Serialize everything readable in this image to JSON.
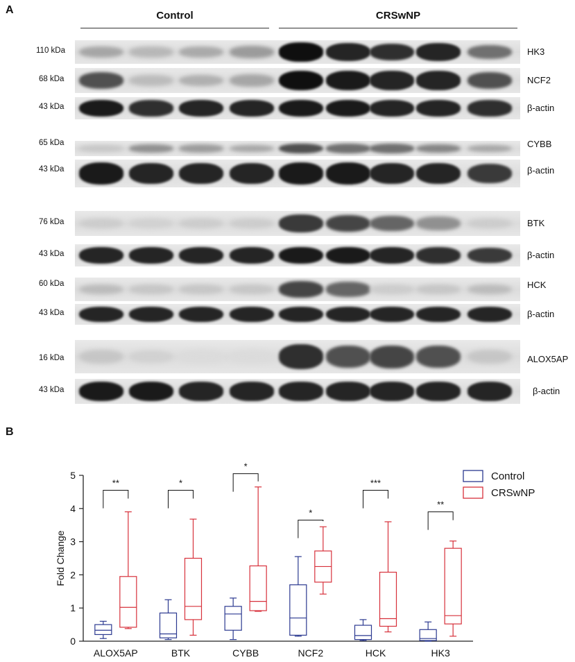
{
  "panel_a": {
    "letter": "A",
    "groups": {
      "control": "Control",
      "crswnp": "CRSwNP"
    },
    "rows": [
      {
        "mw": "110 kDa",
        "protein": "HK3",
        "intensities": [
          0.3,
          0.22,
          0.28,
          0.35,
          1.0,
          0.9,
          0.85,
          0.9,
          0.55
        ]
      },
      {
        "mw": "68 kDa",
        "protein": "NCF2",
        "intensities": [
          0.7,
          0.2,
          0.25,
          0.3,
          1.0,
          0.95,
          0.9,
          0.9,
          0.7
        ]
      },
      {
        "mw": "43 kDa",
        "protein": "β-actin",
        "intensities": [
          0.95,
          0.85,
          0.9,
          0.9,
          0.95,
          0.95,
          0.9,
          0.9,
          0.85
        ]
      },
      {
        "mw": "65 kDa",
        "protein": "CYBB",
        "intensities": [
          0.15,
          0.4,
          0.35,
          0.3,
          0.7,
          0.55,
          0.55,
          0.45,
          0.3
        ]
      },
      {
        "mw": "43 kDa",
        "protein": "β-actin",
        "intensities": [
          0.95,
          0.9,
          0.9,
          0.9,
          0.95,
          0.95,
          0.9,
          0.9,
          0.8
        ]
      },
      {
        "mw": "76 kDa",
        "protein": "BTK",
        "intensities": [
          0.12,
          0.1,
          0.12,
          0.12,
          0.8,
          0.75,
          0.6,
          0.4,
          0.12
        ]
      },
      {
        "mw": "43 kDa",
        "protein": "β-actin",
        "intensities": [
          0.9,
          0.9,
          0.9,
          0.9,
          0.95,
          0.95,
          0.9,
          0.85,
          0.8
        ]
      },
      {
        "mw": "60 kDa",
        "protein": "HCK",
        "intensities": [
          0.2,
          0.15,
          0.15,
          0.15,
          0.75,
          0.6,
          0.12,
          0.15,
          0.2
        ]
      },
      {
        "mw": "43 kDa",
        "protein": "β-actin",
        "intensities": [
          0.9,
          0.9,
          0.9,
          0.9,
          0.9,
          0.9,
          0.9,
          0.9,
          0.9
        ]
      },
      {
        "mw": "16 kDa",
        "protein": "ALOX5AP",
        "intensities": [
          0.15,
          0.1,
          0.05,
          0.05,
          0.85,
          0.7,
          0.75,
          0.7,
          0.15
        ]
      },
      {
        "mw": "43 kDa",
        "protein": "β-actin",
        "intensities": [
          0.95,
          0.95,
          0.9,
          0.9,
          0.9,
          0.9,
          0.9,
          0.9,
          0.9
        ]
      }
    ]
  },
  "panel_b": {
    "letter": "B"
  },
  "chart_data": {
    "type": "boxplot",
    "categories": [
      "ALOX5AP",
      "BTK",
      "CYBB",
      "NCF2",
      "HCK",
      "HK3"
    ],
    "ylabel": "Fold Change",
    "xlabel": "",
    "ylim": [
      0,
      5
    ],
    "yticks": [
      0,
      1,
      2,
      3,
      4,
      5
    ],
    "legend_position": "top-right",
    "series": [
      {
        "name": "Control",
        "color": "#2b3990",
        "boxes": [
          {
            "min": 0.08,
            "q1": 0.2,
            "median": 0.33,
            "q3": 0.5,
            "max": 0.6
          },
          {
            "min": 0.05,
            "q1": 0.1,
            "median": 0.22,
            "q3": 0.85,
            "max": 1.25
          },
          {
            "min": 0.05,
            "q1": 0.33,
            "median": 0.82,
            "q3": 1.05,
            "max": 1.3
          },
          {
            "min": 0.15,
            "q1": 0.18,
            "median": 0.7,
            "q3": 1.7,
            "max": 2.55
          },
          {
            "min": 0.02,
            "q1": 0.05,
            "median": 0.17,
            "q3": 0.48,
            "max": 0.65
          },
          {
            "min": 0.0,
            "q1": 0.02,
            "median": 0.08,
            "q3": 0.35,
            "max": 0.58
          }
        ]
      },
      {
        "name": "CRSwNP",
        "color": "#d7303a",
        "boxes": [
          {
            "min": 0.38,
            "q1": 0.42,
            "median": 1.02,
            "q3": 1.95,
            "max": 3.9
          },
          {
            "min": 0.18,
            "q1": 0.65,
            "median": 1.05,
            "q3": 2.5,
            "max": 3.68
          },
          {
            "min": 0.9,
            "q1": 0.92,
            "median": 1.2,
            "q3": 2.27,
            "max": 4.65
          },
          {
            "min": 1.42,
            "q1": 1.78,
            "median": 2.25,
            "q3": 2.72,
            "max": 3.45
          },
          {
            "min": 0.28,
            "q1": 0.45,
            "median": 0.68,
            "q3": 2.08,
            "max": 3.6
          },
          {
            "min": 0.15,
            "q1": 0.52,
            "median": 0.77,
            "q3": 2.8,
            "max": 3.02
          }
        ]
      }
    ],
    "significance": [
      {
        "category": "ALOX5AP",
        "label": "**",
        "level": 4.55
      },
      {
        "category": "BTK",
        "label": "*",
        "level": 4.55
      },
      {
        "category": "CYBB",
        "label": "*",
        "level": 5.05
      },
      {
        "category": "NCF2",
        "label": "*",
        "level": 3.65
      },
      {
        "category": "HCK",
        "label": "***",
        "level": 4.55
      },
      {
        "category": "HK3",
        "label": "**",
        "level": 3.9
      }
    ]
  }
}
